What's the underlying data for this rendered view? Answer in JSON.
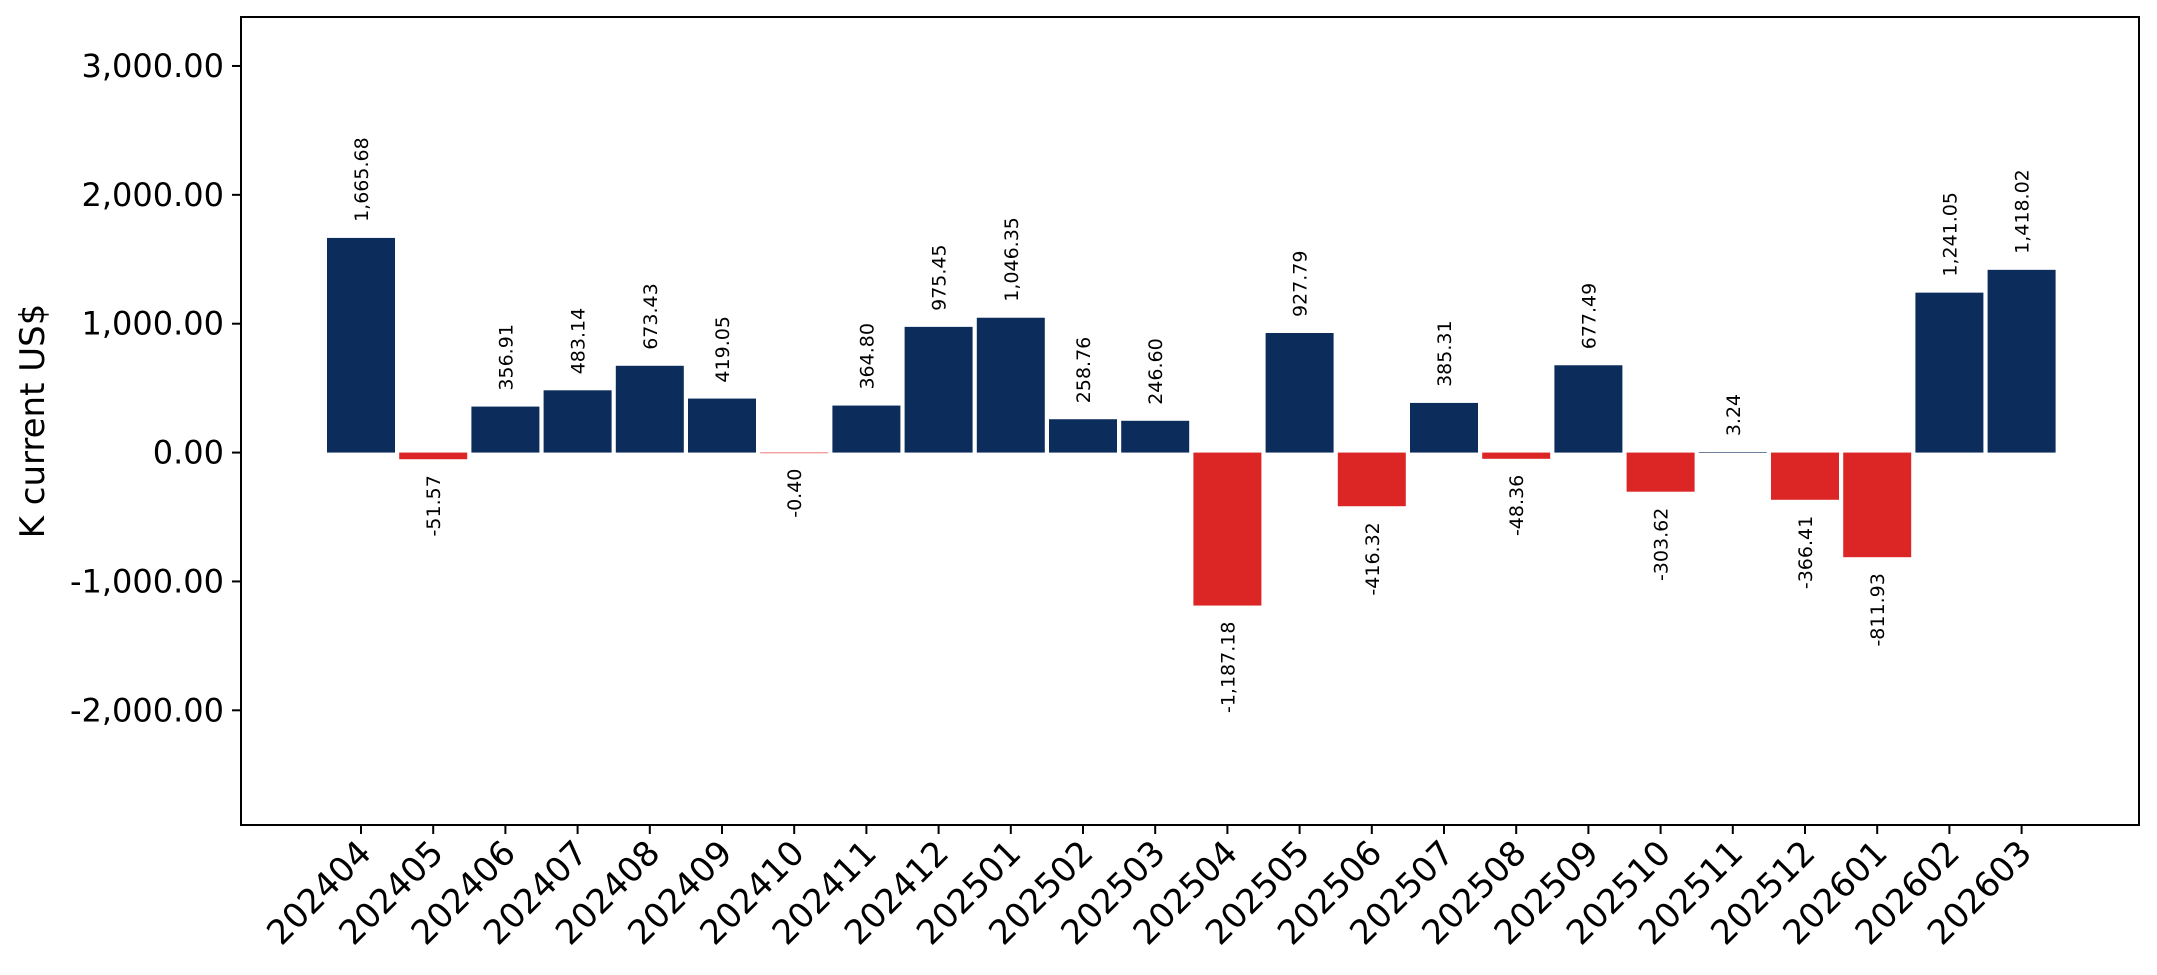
{
  "chart_data": {
    "type": "bar",
    "categories": [
      "202404",
      "202405",
      "202406",
      "202407",
      "202408",
      "202409",
      "202410",
      "202411",
      "202412",
      "202501",
      "202502",
      "202503",
      "202504",
      "202505",
      "202506",
      "202507",
      "202508",
      "202509",
      "202510",
      "202511",
      "202512",
      "202601",
      "202602",
      "202603"
    ],
    "values": [
      1665.68,
      -51.57,
      356.91,
      483.14,
      673.43,
      419.05,
      -0.4,
      364.8,
      975.45,
      1046.35,
      258.76,
      246.6,
      -1187.18,
      927.79,
      -416.32,
      385.31,
      -48.36,
      677.49,
      -303.62,
      3.24,
      -366.41,
      -811.93,
      1241.05,
      1418.02
    ],
    "data_labels": [
      "1,665.68",
      "-51.57",
      "356.91",
      "483.14",
      "673.43",
      "419.05",
      "-0.40",
      "364.80",
      "975.45",
      "1,046.35",
      "258.76",
      "246.60",
      "-1,187.18",
      "927.79",
      "-416.32",
      "385.31",
      "-48.36",
      "677.49",
      "-303.62",
      "3.24",
      "-366.41",
      "-811.93",
      "1,241.05",
      "1,418.02"
    ],
    "yticks": [
      -2000,
      -1000,
      0,
      1000,
      2000,
      3000
    ],
    "ytick_labels": [
      "-2,000.00",
      "-1,000.00",
      "0.00",
      "1,000.00",
      "2,000.00",
      "3,000.00"
    ],
    "ylim": [
      -2890,
      3380
    ],
    "ylabel": "K current US$",
    "xlabel": "",
    "title": "",
    "grid": false,
    "colors": {
      "positive": "#0c2c5c",
      "negative": "#dc2626",
      "axis": "#000000"
    }
  }
}
